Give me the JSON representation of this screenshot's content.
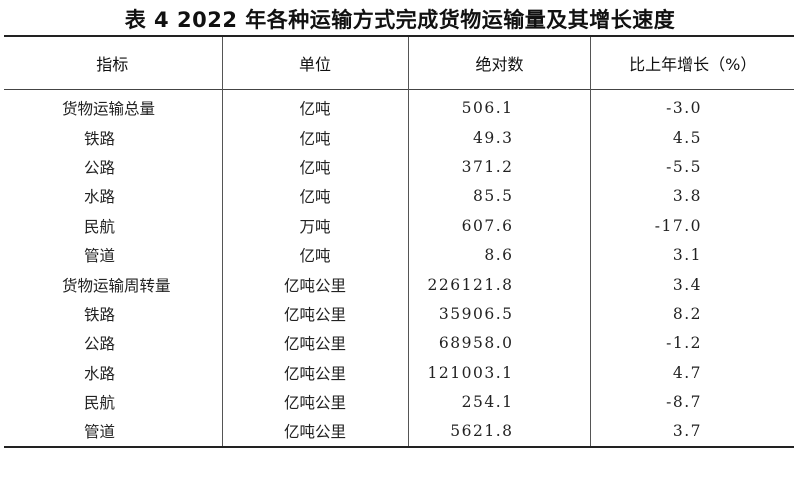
{
  "title": "表 4   2022 年各种运输方式完成货物运输量及其增长速度",
  "headers": [
    "指标",
    "单位",
    "绝对数",
    "比上年增长（%）"
  ],
  "rows": [
    {
      "indicator": "货物运输总量",
      "unit": "亿吨",
      "value": "506.1",
      "growth": "-3.0",
      "sub": false
    },
    {
      "indicator": "铁路",
      "unit": "亿吨",
      "value": "49.3",
      "growth": "4.5",
      "sub": true
    },
    {
      "indicator": "公路",
      "unit": "亿吨",
      "value": "371.2",
      "growth": "-5.5",
      "sub": true
    },
    {
      "indicator": "水路",
      "unit": "亿吨",
      "value": "85.5",
      "growth": "3.8",
      "sub": true
    },
    {
      "indicator": "民航",
      "unit": "万吨",
      "value": "607.6",
      "growth": "-17.0",
      "sub": true
    },
    {
      "indicator": "管道",
      "unit": "亿吨",
      "value": "8.6",
      "growth": "3.1",
      "sub": true
    },
    {
      "indicator": "货物运输周转量",
      "unit": "亿吨公里",
      "value": "226121.8",
      "growth": "3.4",
      "sub": false
    },
    {
      "indicator": "铁路",
      "unit": "亿吨公里",
      "value": "35906.5",
      "growth": "8.2",
      "sub": true
    },
    {
      "indicator": "公路",
      "unit": "亿吨公里",
      "value": "68958.0",
      "growth": "-1.2",
      "sub": true
    },
    {
      "indicator": "水路",
      "unit": "亿吨公里",
      "value": "121003.1",
      "growth": "4.7",
      "sub": true
    },
    {
      "indicator": "民航",
      "unit": "亿吨公里",
      "value": "254.1",
      "growth": "-8.7",
      "sub": true
    },
    {
      "indicator": "管道",
      "unit": "亿吨公里",
      "value": "5621.8",
      "growth": "3.7",
      "sub": true
    }
  ]
}
